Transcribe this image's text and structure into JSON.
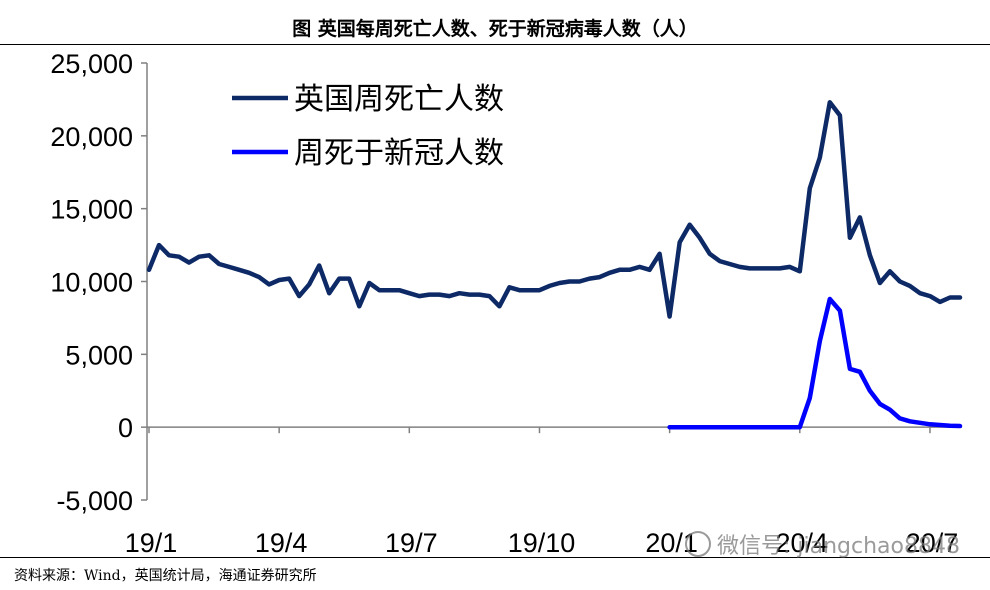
{
  "title": "图  英国每周死亡人数、死于新冠病毒人数（人）",
  "source": "资料来源：Wind，英国统计局，海通证券研究所",
  "watermark": "微信号: jiangchao8848",
  "colors": {
    "uk_total": "#0d2a66",
    "covid": "#0000ff",
    "axis": "#808080"
  },
  "chart_data": {
    "type": "line",
    "title": "图  英国每周死亡人数、死于新冠病毒人数（人）",
    "ylim": [
      -5000,
      25000
    ],
    "y_ticks": [
      -5000,
      0,
      5000,
      10000,
      15000,
      20000,
      25000
    ],
    "y_tick_labels": [
      "-5,000",
      "0",
      "5,000",
      "10,000",
      "15,000",
      "20,000",
      "25,000"
    ],
    "x_tick_labels": [
      "19/1",
      "19/4",
      "19/7",
      "19/10",
      "20/1",
      "20/4",
      "20/7"
    ],
    "grid": false,
    "legend_position": "top-left",
    "series": [
      {
        "name": "英国周死亡人数",
        "color": "#0d2a66",
        "x_week": [
          0,
          1,
          2,
          3,
          4,
          5,
          6,
          7,
          8,
          9,
          10,
          11,
          12,
          13,
          14,
          15,
          16,
          17,
          18,
          19,
          20,
          21,
          22,
          23,
          24,
          25,
          26,
          27,
          28,
          29,
          30,
          31,
          32,
          33,
          34,
          35,
          36,
          37,
          38,
          39,
          40,
          41,
          42,
          43,
          44,
          45,
          46,
          47,
          48,
          49,
          50,
          51,
          52,
          53,
          54,
          55,
          56,
          57,
          58,
          59,
          60,
          61,
          62,
          63,
          64,
          65,
          66,
          67,
          68,
          69,
          70,
          71,
          72,
          73,
          74,
          75,
          76,
          77,
          78,
          79,
          80,
          81
        ],
        "values": [
          10800,
          12500,
          11800,
          11700,
          11300,
          11700,
          11800,
          11200,
          11000,
          10800,
          10600,
          10300,
          9800,
          10100,
          10200,
          9000,
          9800,
          11100,
          9200,
          10200,
          10200,
          8300,
          9900,
          9400,
          9400,
          9400,
          9200,
          9000,
          9100,
          9100,
          9000,
          9200,
          9100,
          9100,
          9000,
          8300,
          9600,
          9400,
          9400,
          9400,
          9700,
          9900,
          10000,
          10000,
          10200,
          10300,
          10600,
          10800,
          10800,
          11000,
          10800,
          11900,
          7600,
          12700,
          13900,
          13000,
          11900,
          11400,
          11200,
          11000,
          10900,
          10900,
          10900,
          10900,
          11000,
          10700,
          16400,
          18500,
          22300,
          21400,
          13000,
          14400,
          11800,
          9900,
          10700,
          10000,
          9700,
          9200,
          9000,
          8600,
          8900,
          8900
        ],
        "x_range": [
          0,
          81
        ]
      },
      {
        "name": "周死于新冠人数",
        "color": "#0000ff",
        "x_week": [
          52,
          53,
          54,
          55,
          56,
          57,
          58,
          59,
          60,
          61,
          62,
          63,
          64,
          65,
          66,
          67,
          68,
          69,
          70,
          71,
          72,
          73,
          74,
          75,
          76,
          77,
          78,
          79,
          80,
          81
        ],
        "values": [
          0,
          0,
          0,
          0,
          0,
          0,
          0,
          0,
          0,
          0,
          0,
          0,
          0,
          0,
          2000,
          5900,
          8800,
          8000,
          4000,
          3800,
          2500,
          1600,
          1200,
          600,
          400,
          300,
          200,
          150,
          100,
          80
        ]
      }
    ]
  }
}
